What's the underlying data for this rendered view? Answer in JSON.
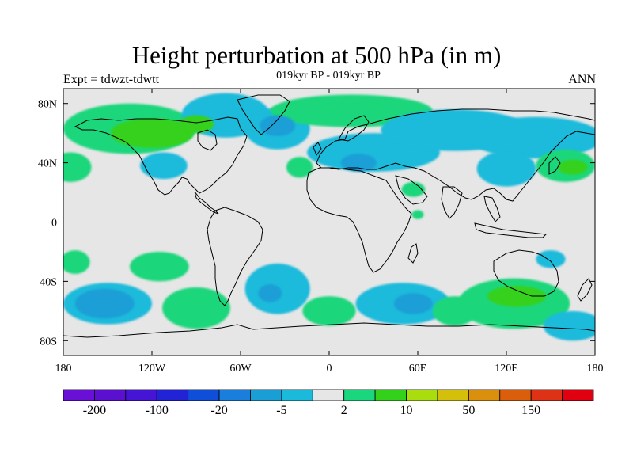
{
  "header": {
    "title": "Height perturbation at 500 hPa (in m)",
    "subtitle": "019kyr BP - 019kyr BP",
    "expt": "Expt = tdwzt-tdwtt",
    "season": "ANN"
  },
  "map": {
    "lon_range": [
      -180,
      180
    ],
    "lat_range": [
      -90,
      90
    ],
    "background_color": "#e6e6e6",
    "xticks": [
      {
        "lon": -180,
        "label": "180"
      },
      {
        "lon": -120,
        "label": "120W"
      },
      {
        "lon": -60,
        "label": "60W"
      },
      {
        "lon": 0,
        "label": "0"
      },
      {
        "lon": 60,
        "label": "60E"
      },
      {
        "lon": 120,
        "label": "120E"
      },
      {
        "lon": 180,
        "label": "180"
      }
    ],
    "yticks": [
      {
        "lat": 80,
        "label": "80N"
      },
      {
        "lat": 40,
        "label": "40N"
      },
      {
        "lat": 0,
        "label": "0"
      },
      {
        "lat": -40,
        "label": "40S"
      },
      {
        "lat": -80,
        "label": "80S"
      }
    ],
    "regions": [
      {
        "lon": -135,
        "lat": 63,
        "rx": 45,
        "ry": 17,
        "level": 1
      },
      {
        "lon": -120,
        "lat": 60,
        "rx": 28,
        "ry": 10,
        "level": 2
      },
      {
        "lon": -90,
        "lat": 66,
        "rx": 12,
        "ry": 6,
        "level": 2
      },
      {
        "lon": -175,
        "lat": 37,
        "rx": 14,
        "ry": 10,
        "level": 1
      },
      {
        "lon": -112,
        "lat": 38,
        "rx": 16,
        "ry": 9,
        "level": -1
      },
      {
        "lon": -70,
        "lat": 72,
        "rx": 30,
        "ry": 15,
        "level": -1
      },
      {
        "lon": -35,
        "lat": 63,
        "rx": 22,
        "ry": 14,
        "level": -1
      },
      {
        "lon": -35,
        "lat": 65,
        "rx": 12,
        "ry": 7,
        "level": -2
      },
      {
        "lon": -20,
        "lat": 37,
        "rx": 9,
        "ry": 7,
        "level": 1
      },
      {
        "lon": 15,
        "lat": 75,
        "rx": 55,
        "ry": 11,
        "level": 1
      },
      {
        "lon": 30,
        "lat": 47,
        "rx": 45,
        "ry": 13,
        "level": -1
      },
      {
        "lon": 20,
        "lat": 40,
        "rx": 12,
        "ry": 6,
        "level": -2
      },
      {
        "lon": 85,
        "lat": 62,
        "rx": 50,
        "ry": 14,
        "level": -1
      },
      {
        "lon": 140,
        "lat": 57,
        "rx": 45,
        "ry": 14,
        "level": -1
      },
      {
        "lon": 120,
        "lat": 36,
        "rx": 20,
        "ry": 12,
        "level": -1
      },
      {
        "lon": 160,
        "lat": 38,
        "rx": 20,
        "ry": 11,
        "level": 1
      },
      {
        "lon": 165,
        "lat": 37,
        "rx": 10,
        "ry": 5,
        "level": 2
      },
      {
        "lon": 57,
        "lat": 22,
        "rx": 8,
        "ry": 5,
        "level": 1
      },
      {
        "lon": -172,
        "lat": -27,
        "rx": 10,
        "ry": 8,
        "level": 1
      },
      {
        "lon": -115,
        "lat": -30,
        "rx": 20,
        "ry": 10,
        "level": 1
      },
      {
        "lon": -150,
        "lat": -55,
        "rx": 30,
        "ry": 14,
        "level": -1
      },
      {
        "lon": -152,
        "lat": -55,
        "rx": 20,
        "ry": 10,
        "level": -2
      },
      {
        "lon": -90,
        "lat": -58,
        "rx": 23,
        "ry": 14,
        "level": 1
      },
      {
        "lon": -35,
        "lat": -45,
        "rx": 22,
        "ry": 17,
        "level": -1
      },
      {
        "lon": -40,
        "lat": -48,
        "rx": 8,
        "ry": 6,
        "level": -2
      },
      {
        "lon": 0,
        "lat": -60,
        "rx": 18,
        "ry": 10,
        "level": 1
      },
      {
        "lon": 50,
        "lat": -55,
        "rx": 32,
        "ry": 14,
        "level": -1
      },
      {
        "lon": 57,
        "lat": -55,
        "rx": 13,
        "ry": 7,
        "level": -2
      },
      {
        "lon": 85,
        "lat": -60,
        "rx": 15,
        "ry": 10,
        "level": 1
      },
      {
        "lon": 125,
        "lat": -55,
        "rx": 38,
        "ry": 17,
        "level": 1
      },
      {
        "lon": 127,
        "lat": -50,
        "rx": 20,
        "ry": 7,
        "level": 2
      },
      {
        "lon": 150,
        "lat": -25,
        "rx": 10,
        "ry": 6,
        "level": -1
      },
      {
        "lon": 165,
        "lat": -70,
        "rx": 20,
        "ry": 10,
        "level": -1
      },
      {
        "lon": 60,
        "lat": 5,
        "rx": 4,
        "ry": 3,
        "level": 1
      }
    ]
  },
  "colorbar": {
    "colors": [
      "#6a0fd6",
      "#5c10cf",
      "#4514d4",
      "#2222d6",
      "#0f4ed8",
      "#1a7edc",
      "#1a9ed6",
      "#1bbadb",
      "#e6e6e6",
      "#1ad67c",
      "#34d11b",
      "#a9dd0d",
      "#d4bf0a",
      "#db900d",
      "#db5e0d",
      "#dd3216",
      "#e0000f"
    ],
    "labels": [
      {
        "after_box": 1,
        "text": "-200"
      },
      {
        "after_box": 3,
        "text": "-100"
      },
      {
        "after_box": 5,
        "text": "-20"
      },
      {
        "after_box": 7,
        "text": "-5"
      },
      {
        "after_box": 9,
        "text": "2"
      },
      {
        "after_box": 11,
        "text": "10"
      },
      {
        "after_box": 13,
        "text": "50"
      },
      {
        "after_box": 15,
        "text": "150"
      }
    ]
  }
}
